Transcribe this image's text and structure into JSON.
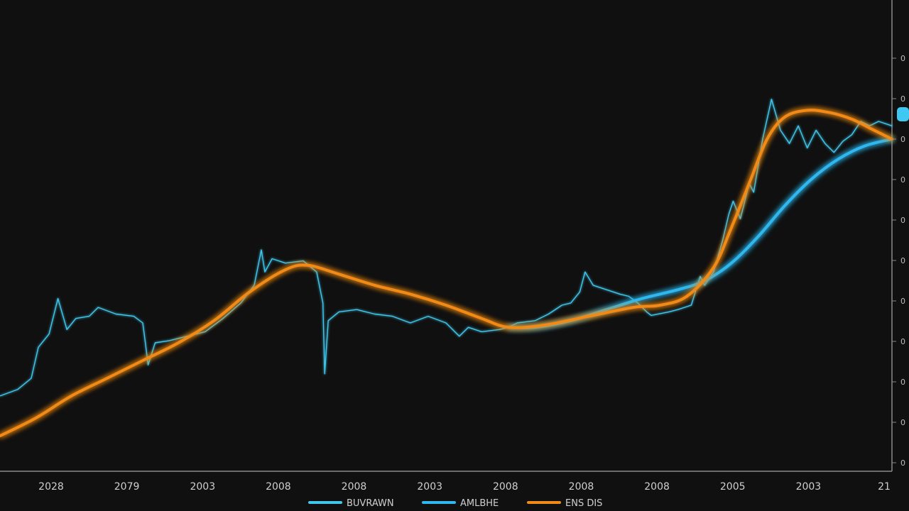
{
  "chart_data": {
    "type": "line",
    "x_tick_labels": [
      "2028",
      "2079",
      "2003",
      "2008",
      "2008",
      "2003",
      "2008",
      "2008",
      "2008",
      "2005",
      "2003",
      "21"
    ],
    "y_tick_labels": [
      "0",
      "0",
      "0",
      "0",
      "0",
      "0",
      "0",
      "0",
      "0",
      "0",
      "0"
    ],
    "ylim": [
      0,
      100
    ],
    "xlim": [
      0,
      100
    ],
    "grid": false,
    "legend_position": "bottom-center",
    "last_value_badge": "",
    "series": [
      {
        "name": "BUVRAWN",
        "style": "thin-jagged",
        "color": "#3fc7ec",
        "points": [
          [
            0,
            17
          ],
          [
            2,
            18.5
          ],
          [
            3.5,
            21
          ],
          [
            4.3,
            28
          ],
          [
            5.5,
            31
          ],
          [
            6.5,
            39
          ],
          [
            7.5,
            32
          ],
          [
            8.5,
            34.5
          ],
          [
            10,
            35
          ],
          [
            11,
            37
          ],
          [
            13,
            35.5
          ],
          [
            15,
            35
          ],
          [
            16,
            33.5
          ],
          [
            16.3,
            29
          ],
          [
            16.6,
            24
          ],
          [
            17.4,
            29
          ],
          [
            19,
            29.5
          ],
          [
            21,
            30.5
          ],
          [
            23,
            31.5
          ],
          [
            25,
            34.5
          ],
          [
            27,
            38
          ],
          [
            28.5,
            42
          ],
          [
            29.3,
            50
          ],
          [
            29.7,
            45
          ],
          [
            30.5,
            48
          ],
          [
            32,
            47
          ],
          [
            34,
            47.5
          ],
          [
            35.5,
            45
          ],
          [
            36.2,
            38
          ],
          [
            36.4,
            22
          ],
          [
            36.8,
            34
          ],
          [
            38,
            36
          ],
          [
            40,
            36.5
          ],
          [
            42,
            35.5
          ],
          [
            44,
            35
          ],
          [
            46,
            33.5
          ],
          [
            48,
            35
          ],
          [
            50,
            33.5
          ],
          [
            51.5,
            30.5
          ],
          [
            52.5,
            32.5
          ],
          [
            54,
            31.5
          ],
          [
            56,
            32
          ],
          [
            57,
            32.5
          ],
          [
            58,
            33.5
          ],
          [
            60,
            34
          ],
          [
            61.5,
            35.5
          ],
          [
            63,
            37.5
          ],
          [
            64,
            38
          ],
          [
            65,
            40.5
          ],
          [
            65.6,
            45
          ],
          [
            66.5,
            42
          ],
          [
            68,
            41
          ],
          [
            69.5,
            40
          ],
          [
            70.5,
            39.5
          ],
          [
            71.5,
            38
          ],
          [
            72.5,
            36
          ],
          [
            73,
            35.2
          ],
          [
            75,
            36
          ],
          [
            76,
            36.5
          ],
          [
            77.5,
            37.5
          ],
          [
            78.5,
            44
          ],
          [
            79,
            42
          ],
          [
            80,
            45
          ],
          [
            81,
            52
          ],
          [
            81.7,
            58
          ],
          [
            82.2,
            61
          ],
          [
            83,
            57
          ],
          [
            84,
            65
          ],
          [
            84.5,
            63
          ],
          [
            85.5,
            75
          ],
          [
            86.5,
            84
          ],
          [
            87.5,
            77
          ],
          [
            88.5,
            74
          ],
          [
            89.5,
            78
          ],
          [
            90.5,
            73
          ],
          [
            91.5,
            77
          ],
          [
            92.5,
            74
          ],
          [
            93.5,
            72
          ],
          [
            94.5,
            74.5
          ],
          [
            95.5,
            76
          ],
          [
            96.5,
            79
          ],
          [
            97.5,
            78
          ],
          [
            98.5,
            79
          ],
          [
            100,
            78
          ]
        ]
      },
      {
        "name": "AMLBHE",
        "style": "smooth-glow",
        "color": "#2fb8ef",
        "points": [
          [
            57,
            32.5
          ],
          [
            60,
            32.5
          ],
          [
            64,
            34
          ],
          [
            68,
            36.5
          ],
          [
            72,
            39
          ],
          [
            76,
            41
          ],
          [
            79,
            43
          ],
          [
            82,
            47
          ],
          [
            85,
            53
          ],
          [
            88,
            60
          ],
          [
            91,
            66
          ],
          [
            94,
            70.5
          ],
          [
            97,
            73.5
          ],
          [
            100,
            75
          ]
        ]
      },
      {
        "name": "ENS DIS",
        "style": "smooth-glow",
        "color": "#f28a17",
        "points": [
          [
            0,
            8
          ],
          [
            4,
            12
          ],
          [
            8,
            17
          ],
          [
            12,
            21
          ],
          [
            16,
            25
          ],
          [
            20,
            29
          ],
          [
            24,
            34
          ],
          [
            28,
            40.5
          ],
          [
            32,
            45.5
          ],
          [
            34.5,
            46.5
          ],
          [
            38,
            44.5
          ],
          [
            42,
            42
          ],
          [
            46,
            40
          ],
          [
            50,
            37.5
          ],
          [
            54,
            34.5
          ],
          [
            57,
            32.5
          ],
          [
            61,
            33
          ],
          [
            66,
            35
          ],
          [
            71,
            37
          ],
          [
            74,
            37.5
          ],
          [
            77,
            39.5
          ],
          [
            80,
            46
          ],
          [
            82,
            55
          ],
          [
            84,
            65
          ],
          [
            86,
            75
          ],
          [
            88,
            80
          ],
          [
            90.5,
            81.5
          ],
          [
            93,
            81
          ],
          [
            95.5,
            79.5
          ],
          [
            97.5,
            77.5
          ],
          [
            100,
            75
          ]
        ]
      }
    ]
  }
}
